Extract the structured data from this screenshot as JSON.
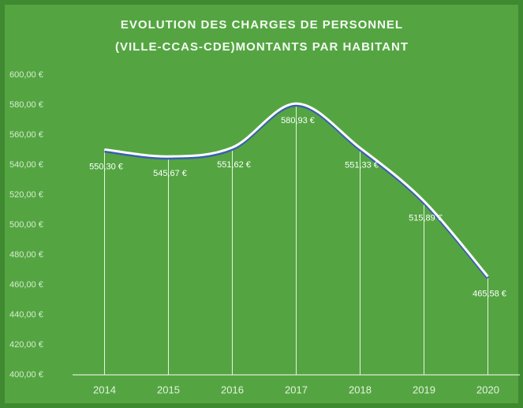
{
  "chart_data": {
    "type": "line",
    "title": [
      "EVOLUTION  DES CHARGES  DE  PERSONNEL",
      "(VILLE-CCAS-CDE)MONTANTS  PAR HABITANT"
    ],
    "categories": [
      "2014",
      "2015",
      "2016",
      "2017",
      "2018",
      "2019",
      "2020"
    ],
    "values": [
      550.3,
      545.67,
      551.62,
      580.93,
      551.33,
      515.89,
      465.58
    ],
    "value_labels": [
      "550,30 €",
      "545,67 €",
      "551,62 €",
      "580,93 €",
      "551,33 €",
      "515,89 €",
      "465,58 €"
    ],
    "color": "#ffffff",
    "ylim": [
      400,
      600
    ],
    "yticks": [
      {
        "value": 400,
        "label": "400,00 €"
      },
      {
        "value": 420,
        "label": "420,00 €"
      },
      {
        "value": 440,
        "label": "440,00 €"
      },
      {
        "value": 460,
        "label": "460,00 €"
      },
      {
        "value": 480,
        "label": "480,00 €"
      },
      {
        "value": 500,
        "label": "500,00 €"
      },
      {
        "value": 520,
        "label": "520,00 €"
      },
      {
        "value": 540,
        "label": "540,00 €"
      },
      {
        "value": 560,
        "label": "560,00 €"
      },
      {
        "value": 580,
        "label": "580,00 €"
      },
      {
        "value": 600,
        "label": "600,00 €"
      }
    ],
    "smooth": true,
    "drop_lines": true,
    "grid": false
  }
}
